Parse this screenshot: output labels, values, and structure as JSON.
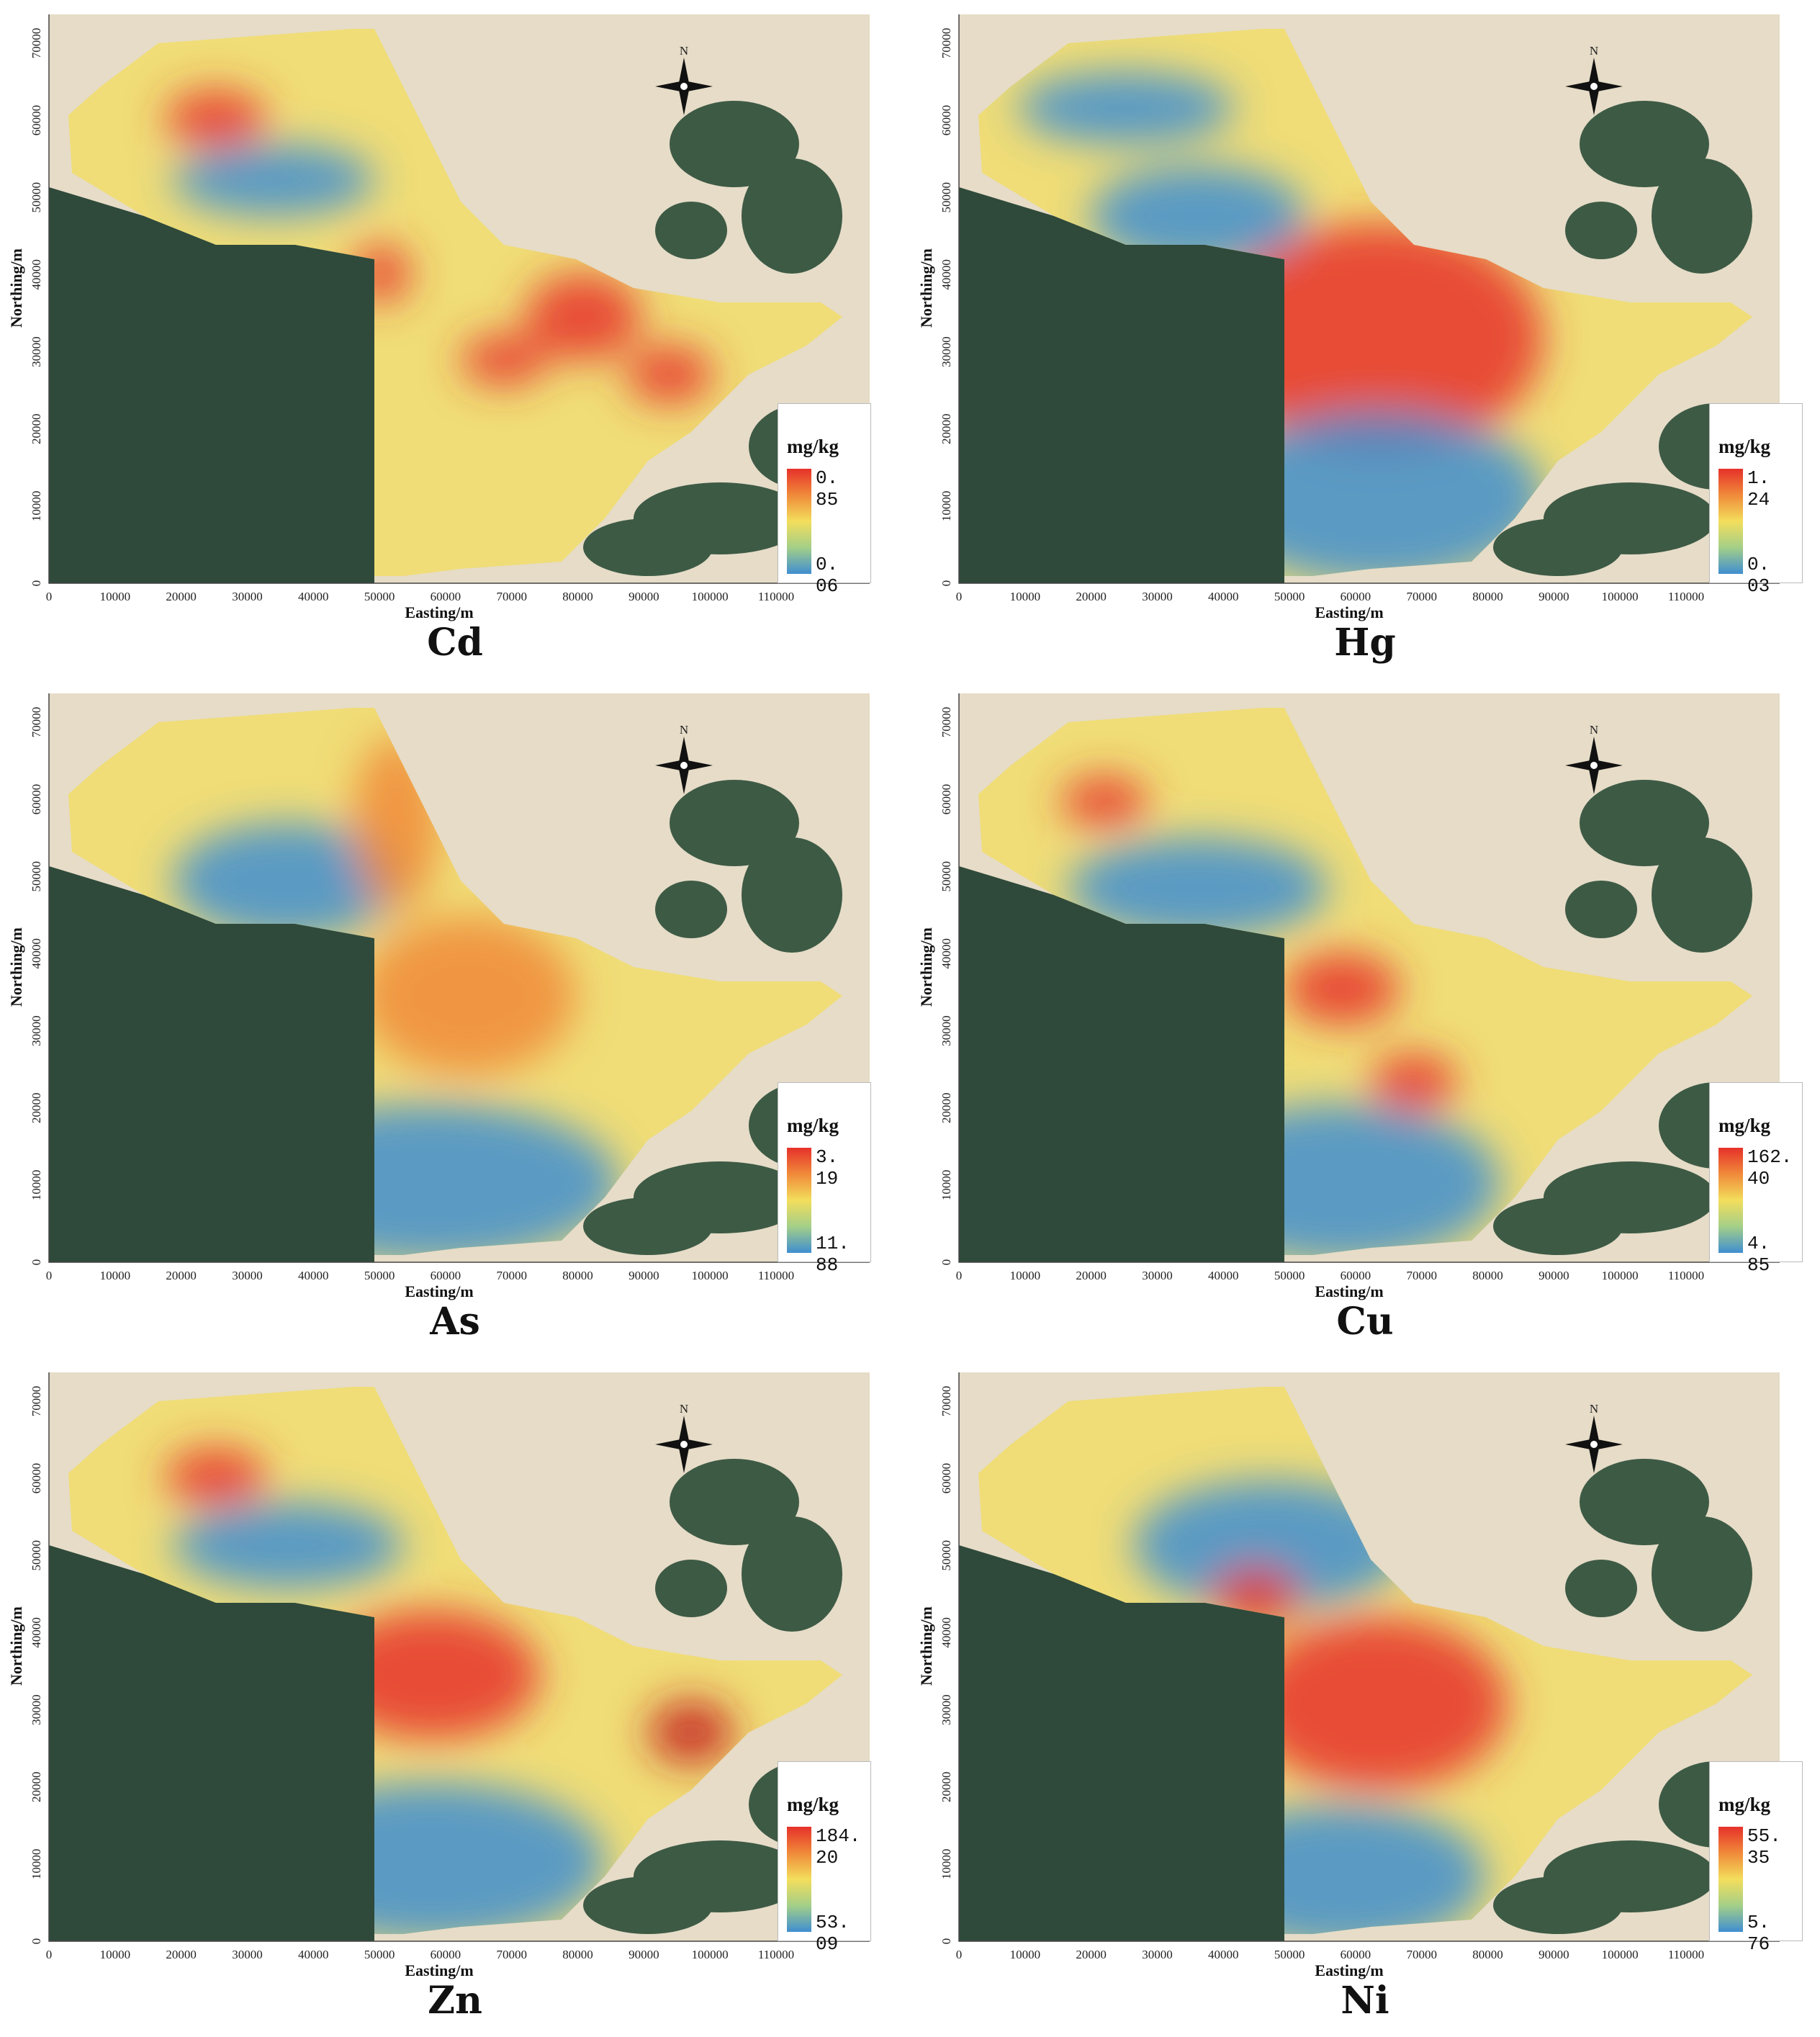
{
  "panels": [
    {
      "element": "Cd",
      "unit": "mg/kg",
      "max": "0. 85",
      "min": "0. 06"
    },
    {
      "element": "Hg",
      "unit": "mg/kg",
      "max": "1. 24",
      "min": "0. 03"
    },
    {
      "element": "As",
      "unit": "mg/kg",
      "max": "3. 19",
      "min": "11. 88"
    },
    {
      "element": "Cu",
      "unit": "mg/kg",
      "max": "162. 40",
      "min": "4. 85"
    },
    {
      "element": "Zn",
      "unit": "mg/kg",
      "max": "184. 20",
      "min": "53. 09"
    },
    {
      "element": "Ni",
      "unit": "mg/kg",
      "max": "55. 35",
      "min": "5. 76"
    }
  ],
  "axes": {
    "xlabel": "Easting/m",
    "ylabel": "Northing/m",
    "xticks": [
      "0",
      "10000",
      "20000",
      "30000",
      "40000",
      "50000",
      "60000",
      "70000",
      "80000",
      "90000",
      "100000",
      "110000"
    ],
    "yticks": [
      "0",
      "10000",
      "20000",
      "30000",
      "40000",
      "50000",
      "60000",
      "70000"
    ]
  },
  "north_label": "N",
  "colors": {
    "high": "#e6312a",
    "mid": "#f3de5c",
    "low": "#3f8ed0",
    "land_dark": "#2f4a3a",
    "water": "#e6dcc7"
  }
}
